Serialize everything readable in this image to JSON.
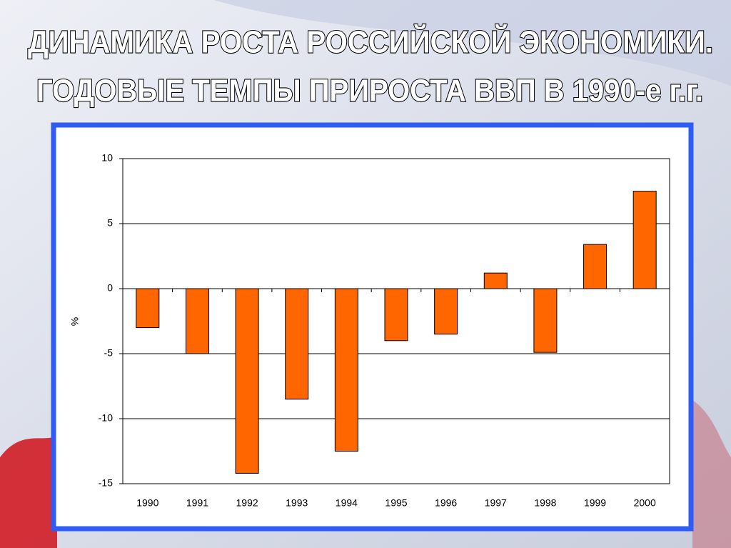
{
  "chart_data": {
    "type": "bar",
    "title": [
      "ДИНАМИКА РОСТА РОССИЙСКОЙ ЭКОНОМИКИ.",
      "ГОДОВЫЕ ТЕМПЫ ПРИРОСТА ВВП В 1990-е г.г."
    ],
    "y_label": "%",
    "categories": [
      "1990",
      "1991",
      "1992",
      "1993",
      "1994",
      "1995",
      "1996",
      "1997",
      "1998",
      "1999",
      "2000"
    ],
    "values": [
      -3.0,
      -5.0,
      -14.2,
      -8.5,
      -12.5,
      -4.0,
      -3.5,
      1.2,
      -4.9,
      3.4,
      7.5
    ],
    "color": "#ff6600",
    "ylim": [
      -15,
      10
    ],
    "yticks": [
      -15,
      -10,
      -5,
      0,
      5,
      10
    ],
    "grid": true
  }
}
